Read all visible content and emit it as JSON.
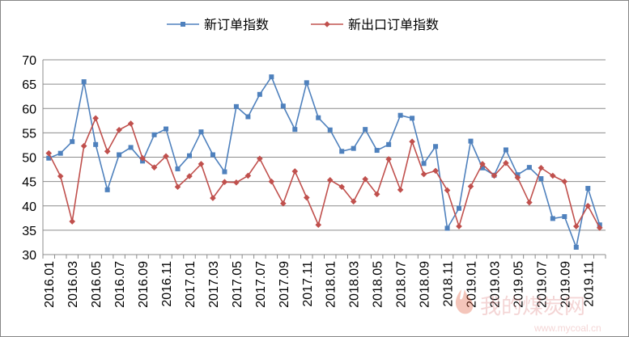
{
  "chart_data": {
    "type": "line",
    "title": "",
    "xlabel": "",
    "ylabel": "",
    "ylim": [
      30,
      70
    ],
    "yticks": [
      30,
      35,
      40,
      45,
      50,
      55,
      60,
      65,
      70
    ],
    "grid": "horizontal",
    "legend_position": "top-center",
    "x": [
      "2016.01",
      "2016.02",
      "2016.03",
      "2016.04",
      "2016.05",
      "2016.06",
      "2016.07",
      "2016.08",
      "2016.09",
      "2016.10",
      "2016.11",
      "2016.12",
      "2017.01",
      "2017.02",
      "2017.03",
      "2017.04",
      "2017.05",
      "2017.06",
      "2017.07",
      "2017.08",
      "2017.09",
      "2017.10",
      "2017.11",
      "2017.12",
      "2018.01",
      "2018.02",
      "2018.03",
      "2018.04",
      "2018.05",
      "2018.06",
      "2018.07",
      "2018.08",
      "2018.09",
      "2018.10",
      "2018.11",
      "2018.12",
      "2019.01",
      "2019.02",
      "2019.03",
      "2019.04",
      "2019.05",
      "2019.06",
      "2019.07",
      "2019.08",
      "2019.09",
      "2019.10",
      "2019.11",
      "2019.12"
    ],
    "xtick_labels": [
      "2016.01",
      "2016.03",
      "2016.05",
      "2016.07",
      "2016.09",
      "2016.11",
      "2017.01",
      "2017.03",
      "2017.05",
      "2017.07",
      "2017.09",
      "2017.11",
      "2018.01",
      "2018.03",
      "2018.05",
      "2018.07",
      "2018.09",
      "2018.11",
      "2019.01",
      "2019.03",
      "2019.05",
      "2019.07",
      "2019.09",
      "2019.11"
    ],
    "series": [
      {
        "name": "新订单指数",
        "color": "#4f81bd",
        "marker": "square",
        "values": [
          49.8,
          50.8,
          53.2,
          65.5,
          52.6,
          43.3,
          50.5,
          52.0,
          49.2,
          54.6,
          55.8,
          47.6,
          50.3,
          55.2,
          50.5,
          47.0,
          60.4,
          58.3,
          62.9,
          66.5,
          60.5,
          55.7,
          65.3,
          58.1,
          55.6,
          51.2,
          51.8,
          55.7,
          51.4,
          52.6,
          58.6,
          58.0,
          48.7,
          52.2,
          35.4,
          39.5,
          53.3,
          47.8,
          46.3,
          51.5,
          46.4,
          47.9,
          45.6,
          37.4,
          37.8,
          31.5,
          43.6,
          36.1
        ]
      },
      {
        "name": "新出口订单指数",
        "color": "#c0504d",
        "marker": "diamond",
        "values": [
          50.8,
          46.1,
          36.8,
          52.3,
          58.0,
          51.2,
          55.6,
          56.9,
          49.8,
          47.9,
          50.2,
          43.9,
          46.1,
          48.6,
          41.6,
          44.9,
          44.8,
          46.2,
          49.7,
          45.0,
          40.5,
          47.1,
          41.7,
          36.1,
          45.3,
          43.9,
          40.9,
          45.5,
          42.4,
          49.6,
          43.3,
          53.2,
          46.5,
          47.2,
          43.2,
          35.8,
          44.0,
          48.6,
          46.2,
          48.8,
          45.8,
          40.7,
          47.8,
          46.2,
          45.0,
          35.8,
          40.0,
          35.5
        ]
      }
    ]
  },
  "watermark": {
    "text_cn": "我的煤炭网",
    "text_url": "www.mycoal.cn"
  }
}
